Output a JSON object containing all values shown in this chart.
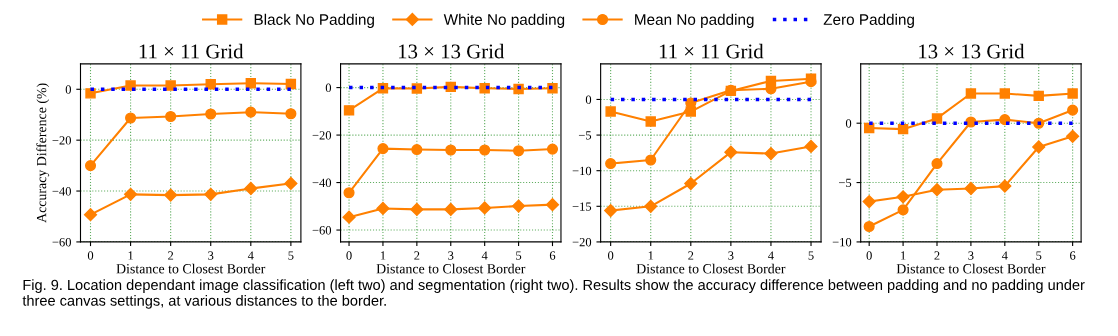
{
  "chart_data": [
    {
      "type": "line",
      "title": "11 × 11 Grid",
      "xlabel": "Distance to Closest Border",
      "ylabel": "Accuracy Difference (%)",
      "x": [
        0,
        1,
        2,
        3,
        4,
        5
      ],
      "xlim": [
        -0.25,
        5.25
      ],
      "xticks": [
        0,
        1,
        2,
        3,
        4,
        5
      ],
      "ylim": [
        -60,
        10
      ],
      "yticks": [
        -60,
        -40,
        -20,
        0
      ],
      "grid": true,
      "legend": "top",
      "annotations": [
        "Fig. 9. Location dependant image classification (left two) and segmentation (right two). Results show the accuracy difference between padding and no padding under three canvas settings, at various distances to the border."
      ],
      "series": [
        {
          "name": "Black No Padding",
          "color": "#ff8000",
          "marker": "square",
          "line_style": "solid",
          "values": [
            -1.6,
            1.5,
            1.5,
            2.0,
            2.4,
            2.1
          ]
        },
        {
          "name": "White No padding",
          "color": "#ff8000",
          "marker": "diamond",
          "line_style": "solid",
          "values": [
            -49.3,
            -41.3,
            -41.6,
            -41.3,
            -39,
            -37
          ]
        },
        {
          "name": "Mean No padding",
          "color": "#ff8000",
          "marker": "circle",
          "line_style": "solid",
          "values": [
            -30,
            -11.3,
            -10.7,
            -9.7,
            -9,
            -9.6
          ]
        },
        {
          "name": "Zero Padding",
          "color": "#0000ff",
          "marker": "none",
          "line_style": "dotted",
          "values": [
            0,
            0,
            0,
            0,
            0,
            0
          ]
        }
      ]
    },
    {
      "type": "line",
      "title": "13 × 13 Grid",
      "xlabel": "Distance to Closest Border",
      "x": [
        0,
        1,
        2,
        3,
        4,
        5,
        6
      ],
      "xlim": [
        -0.25,
        6.25
      ],
      "xticks": [
        0,
        1,
        2,
        3,
        4,
        5,
        6
      ],
      "ylim": [
        -65,
        10
      ],
      "yticks": [
        -60,
        -40,
        -20,
        0
      ],
      "grid": true,
      "series": [
        {
          "color": "#ff8000",
          "marker": "square",
          "line_style": "solid",
          "values": [
            -9.6,
            -0.3,
            -0.4,
            0.3,
            -0.3,
            -0.6,
            -0.3
          ]
        },
        {
          "color": "#ff8000",
          "marker": "diamond",
          "line_style": "solid",
          "values": [
            -54.6,
            -50.9,
            -51.3,
            -51.3,
            -50.7,
            -49.9,
            -49.3
          ]
        },
        {
          "color": "#ff8000",
          "marker": "circle",
          "line_style": "solid",
          "values": [
            -44.3,
            -25.7,
            -26.1,
            -26.3,
            -26.3,
            -26.6,
            -25.9
          ]
        },
        {
          "color": "#0000ff",
          "marker": "none",
          "line_style": "dotted",
          "values": [
            0,
            0,
            0,
            0,
            0,
            0,
            0
          ]
        }
      ]
    },
    {
      "type": "line",
      "title": "11 × 11 Grid",
      "xlabel": "Distance to Closest Border",
      "x": [
        0,
        1,
        2,
        3,
        4,
        5
      ],
      "xlim": [
        -0.25,
        5.25
      ],
      "xticks": [
        0,
        1,
        2,
        3,
        4,
        5
      ],
      "ylim": [
        -20,
        5
      ],
      "yticks": [
        -20,
        -15,
        -10,
        -5,
        0
      ],
      "grid": true,
      "series": [
        {
          "color": "#ff8000",
          "marker": "square",
          "line_style": "solid",
          "values": [
            -1.7,
            -3.1,
            -1.7,
            1.2,
            2.6,
            2.9
          ]
        },
        {
          "color": "#ff8000",
          "marker": "diamond",
          "line_style": "solid",
          "values": [
            -15.6,
            -15.0,
            -11.8,
            -7.4,
            -7.6,
            -6.6
          ]
        },
        {
          "color": "#ff8000",
          "marker": "circle",
          "line_style": "solid",
          "values": [
            -9.0,
            -8.5,
            -0.5,
            1.3,
            1.5,
            2.5
          ]
        },
        {
          "color": "#0000ff",
          "marker": "none",
          "line_style": "dotted",
          "values": [
            0,
            0,
            0,
            0,
            0,
            0
          ]
        }
      ]
    },
    {
      "type": "line",
      "title": "13 × 13 Grid",
      "xlabel": "Distance to Closest Border",
      "x": [
        0,
        1,
        2,
        3,
        4,
        5,
        6
      ],
      "xlim": [
        -0.25,
        6.25
      ],
      "xticks": [
        0,
        1,
        2,
        3,
        4,
        5,
        6
      ],
      "ylim": [
        -10,
        5
      ],
      "yticks": [
        -10,
        -5,
        0
      ],
      "grid": true,
      "series": [
        {
          "color": "#ff8000",
          "marker": "square",
          "line_style": "solid",
          "values": [
            -0.4,
            -0.5,
            0.4,
            2.5,
            2.5,
            2.3,
            2.5
          ]
        },
        {
          "color": "#ff8000",
          "marker": "diamond",
          "line_style": "solid",
          "values": [
            -6.6,
            -6.2,
            -5.6,
            -5.5,
            -5.3,
            -2.0,
            -1.1
          ]
        },
        {
          "color": "#ff8000",
          "marker": "circle",
          "line_style": "solid",
          "values": [
            -8.7,
            -7.3,
            -3.4,
            0.1,
            0.3,
            0.0,
            1.1
          ]
        },
        {
          "color": "#0000ff",
          "marker": "none",
          "line_style": "dotted",
          "values": [
            0,
            0,
            0,
            0,
            0,
            0,
            0
          ]
        }
      ]
    }
  ]
}
